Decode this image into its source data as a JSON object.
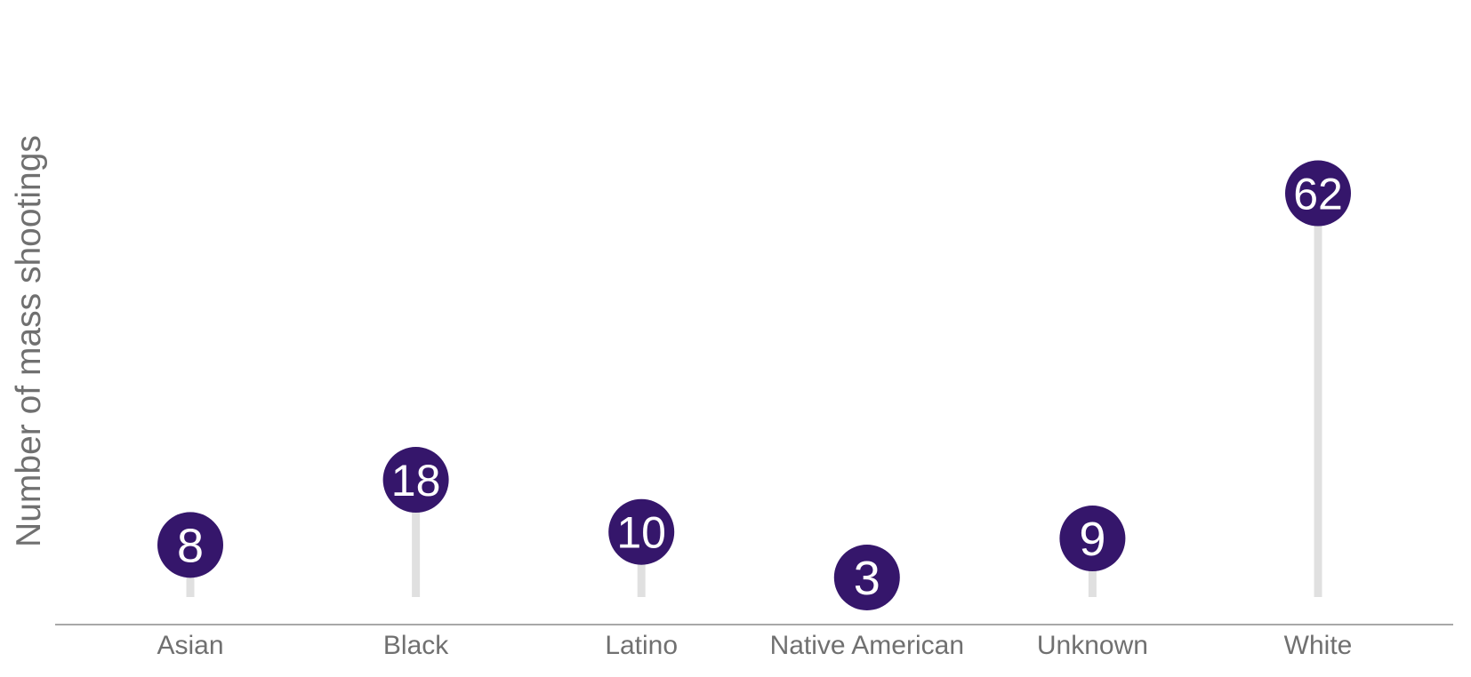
{
  "chart_data": {
    "type": "lollipop",
    "title": "",
    "xlabel": "",
    "ylabel": "Number of mass shootings",
    "categories": [
      "Asian",
      "Black",
      "Latino",
      "Native American",
      "Unknown",
      "White"
    ],
    "values": [
      8,
      18,
      10,
      3,
      9,
      62
    ],
    "ylim": [
      0,
      70
    ],
    "grid": false,
    "legend": "none",
    "colors": {
      "marker": "#35166b",
      "stem": "#e0e0e0",
      "axis": "#8c8c8c",
      "text": "#707070",
      "value_text": "#ffffff"
    }
  }
}
